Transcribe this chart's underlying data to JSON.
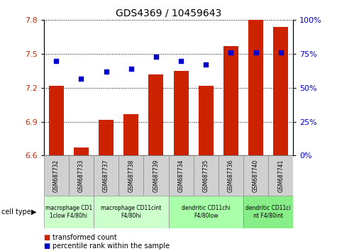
{
  "title": "GDS4369 / 10459643",
  "samples": [
    "GSM687732",
    "GSM687733",
    "GSM687737",
    "GSM687738",
    "GSM687739",
    "GSM687734",
    "GSM687735",
    "GSM687736",
    "GSM687740",
    "GSM687741"
  ],
  "transformed_count": [
    7.22,
    6.67,
    6.92,
    6.97,
    7.32,
    7.35,
    7.22,
    7.57,
    7.8,
    7.74
  ],
  "percentile_rank": [
    70,
    57,
    62,
    64,
    73,
    70,
    67,
    76,
    76,
    76
  ],
  "ylim_left": [
    6.6,
    7.8
  ],
  "ylim_right": [
    0,
    100
  ],
  "yticks_left": [
    6.6,
    6.9,
    7.2,
    7.5,
    7.8
  ],
  "yticks_right": [
    0,
    25,
    50,
    75,
    100
  ],
  "bar_color": "#CC2200",
  "dot_color": "#0000CC",
  "bg_color": "#FFFFFF",
  "cell_type_groups": [
    {
      "label": "macrophage CD1\n1clow F4/80hi",
      "start": 0,
      "end": 1,
      "color": "#ccffcc"
    },
    {
      "label": "macrophage CD11cint\nF4/80hi",
      "start": 2,
      "end": 4,
      "color": "#ccffcc"
    },
    {
      "label": "dendritic CD11chi\nF4/80low",
      "start": 5,
      "end": 7,
      "color": "#aaffaa"
    },
    {
      "label": "dendritic CD11ci\nnt F4/80int",
      "start": 8,
      "end": 9,
      "color": "#88ee88"
    }
  ],
  "legend_label_bar": "transformed count",
  "legend_label_dot": "percentile rank within the sample",
  "cell_type_label": "cell type",
  "group_colors": [
    "#ccffcc",
    "#ccffcc",
    "#aaffaa",
    "#88ee88"
  ]
}
